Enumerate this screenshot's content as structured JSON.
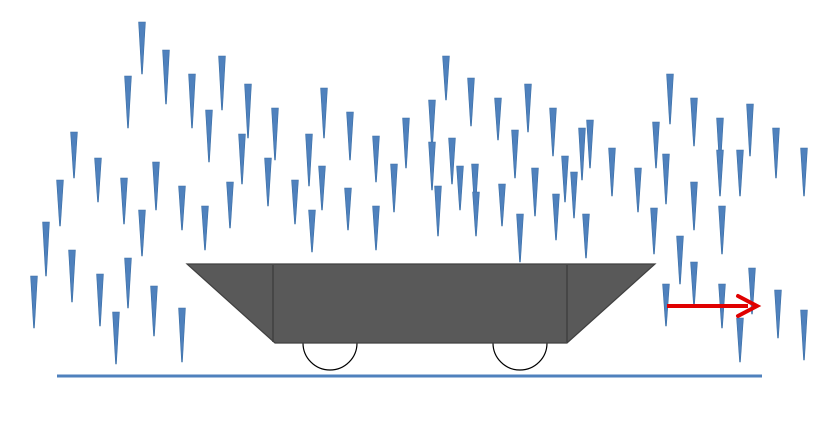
{
  "colors": {
    "background": "#ffffff",
    "raindrop": "#4f81bd",
    "raindrop_edge": "#3a6ea5",
    "ground": "#4f81bd",
    "cart_body": "#595959",
    "cart_outline": "#404040",
    "wheel_fill": "#ffffff",
    "wheel_outline": "#000000",
    "motion_arrow": "#e00000"
  },
  "icons": {
    "raindrop": "raindrop-icon",
    "cart": "cart-icon",
    "wheel": "wheel-icon",
    "arrow": "arrow-right-icon"
  }
}
